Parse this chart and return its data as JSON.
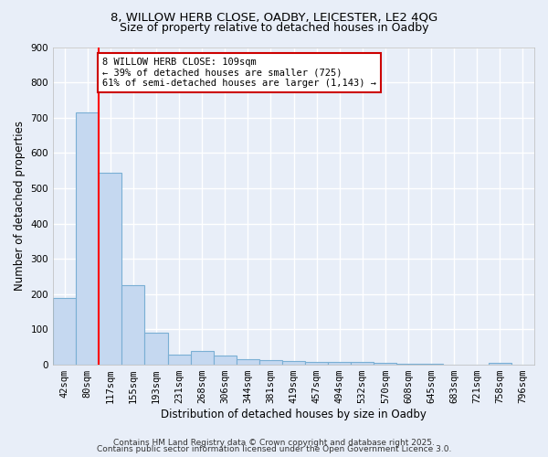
{
  "title_line1": "8, WILLOW HERB CLOSE, OADBY, LEICESTER, LE2 4QG",
  "title_line2": "Size of property relative to detached houses in Oadby",
  "xlabel": "Distribution of detached houses by size in Oadby",
  "ylabel": "Number of detached properties",
  "bin_labels": [
    "42sqm",
    "80sqm",
    "117sqm",
    "155sqm",
    "193sqm",
    "231sqm",
    "268sqm",
    "306sqm",
    "344sqm",
    "381sqm",
    "419sqm",
    "457sqm",
    "494sqm",
    "532sqm",
    "570sqm",
    "608sqm",
    "645sqm",
    "683sqm",
    "721sqm",
    "758sqm",
    "796sqm"
  ],
  "bar_values": [
    190,
    715,
    545,
    225,
    90,
    28,
    40,
    25,
    15,
    12,
    10,
    8,
    8,
    7,
    5,
    3,
    2,
    1,
    1,
    5,
    1
  ],
  "bar_color": "#c5d8f0",
  "bar_edge_color": "#7aafd4",
  "red_line_x": 1.5,
  "annotation_text_line1": "8 WILLOW HERB CLOSE: 109sqm",
  "annotation_text_line2": "← 39% of detached houses are smaller (725)",
  "annotation_text_line3": "61% of semi-detached houses are larger (1,143) →",
  "annotation_box_color": "#ffffff",
  "annotation_box_edge_color": "#cc0000",
  "ylim": [
    0,
    900
  ],
  "yticks": [
    0,
    100,
    200,
    300,
    400,
    500,
    600,
    700,
    800,
    900
  ],
  "footer_line1": "Contains HM Land Registry data © Crown copyright and database right 2025.",
  "footer_line2": "Contains public sector information licensed under the Open Government Licence 3.0.",
  "background_color": "#e8eef8",
  "grid_color": "#ffffff",
  "title_fontsize": 9.5,
  "subtitle_fontsize": 9,
  "axis_label_fontsize": 8.5,
  "tick_fontsize": 7.5,
  "annotation_fontsize": 7.5,
  "footer_fontsize": 6.5
}
